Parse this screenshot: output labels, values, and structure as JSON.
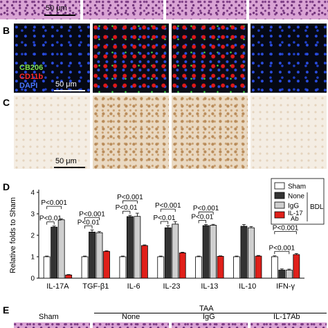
{
  "panels": {
    "A": {
      "scale": "50 μm"
    },
    "B": {
      "letter": "B",
      "scale": "50 μm",
      "stains": [
        {
          "label": "CB206",
          "color": "#7ee04a"
        },
        {
          "label": "CD11b",
          "color": "#ff2a2a"
        },
        {
          "label": "DAPI",
          "color": "#4a78ff"
        }
      ]
    },
    "C": {
      "letter": "C",
      "scale": "50 μm"
    },
    "D": {
      "letter": "D"
    },
    "E": {
      "letter": "E",
      "sham": "Sham",
      "group": "TAA",
      "sub": [
        "None",
        "IgG",
        "IL-17Ab"
      ]
    }
  },
  "chart_data": {
    "type": "bar",
    "ylabel": "Relative folds to Sham",
    "ylim": [
      0,
      4
    ],
    "yticks": [
      0,
      1,
      2,
      3,
      4
    ],
    "categories": [
      "IL-17A",
      "TGF-β1",
      "IL-6",
      "IL-23",
      "IL-13",
      "IL-10",
      "IFN-γ"
    ],
    "series": [
      {
        "name": "Sham",
        "color": "#ffffff",
        "values": [
          1.0,
          1.0,
          1.0,
          1.0,
          1.0,
          1.0,
          1.0
        ],
        "err": [
          0.03,
          0.03,
          0.03,
          0.03,
          0.03,
          0.03,
          0.04
        ]
      },
      {
        "name": "None",
        "color": "#333333",
        "values": [
          2.38,
          2.15,
          2.87,
          2.35,
          2.45,
          2.42,
          0.38
        ],
        "err": [
          0.05,
          0.1,
          0.06,
          0.1,
          0.05,
          0.08,
          0.05
        ]
      },
      {
        "name": "IgG",
        "color": "#cfcfcf",
        "values": [
          2.72,
          2.12,
          2.88,
          2.52,
          2.47,
          2.35,
          0.38
        ],
        "err": [
          0.05,
          0.05,
          0.15,
          0.12,
          0.04,
          0.06,
          0.04
        ]
      },
      {
        "name": "IL-17 Ab",
        "color": "#e0201a",
        "values": [
          0.15,
          1.25,
          1.52,
          1.18,
          1.02,
          1.03,
          1.1
        ],
        "err": [
          0.02,
          0.03,
          0.03,
          0.03,
          0.02,
          0.03,
          0.05
        ]
      }
    ],
    "legend_group": "BDL",
    "annotations": [
      {
        "cat": 0,
        "from": 0,
        "to": 2,
        "text": "P<0.001"
      },
      {
        "cat": 0,
        "from": 0,
        "to": 1,
        "text": "P<0.01"
      },
      {
        "cat": 1,
        "from": 0,
        "to": 2,
        "text": "P<0.001"
      },
      {
        "cat": 1,
        "from": 0,
        "to": 1,
        "text": "P<0.01"
      },
      {
        "cat": 2,
        "from": 0,
        "to": 2,
        "text": "P<0.001"
      },
      {
        "cat": 2,
        "from": 0,
        "to": 1,
        "text": "P<0.01"
      },
      {
        "cat": 3,
        "from": 0,
        "to": 2,
        "text": "P<0.001"
      },
      {
        "cat": 3,
        "from": 0,
        "to": 1,
        "text": "P<0.01"
      },
      {
        "cat": 4,
        "from": 0,
        "to": 2,
        "text": "P<0.001"
      },
      {
        "cat": 4,
        "from": 0,
        "to": 1,
        "text": "P<0.01"
      },
      {
        "cat": 6,
        "from": 0,
        "to": 3,
        "text": "P<0.001"
      },
      {
        "cat": 6,
        "from": 0,
        "to": 2,
        "text": "P<0.001"
      }
    ]
  }
}
